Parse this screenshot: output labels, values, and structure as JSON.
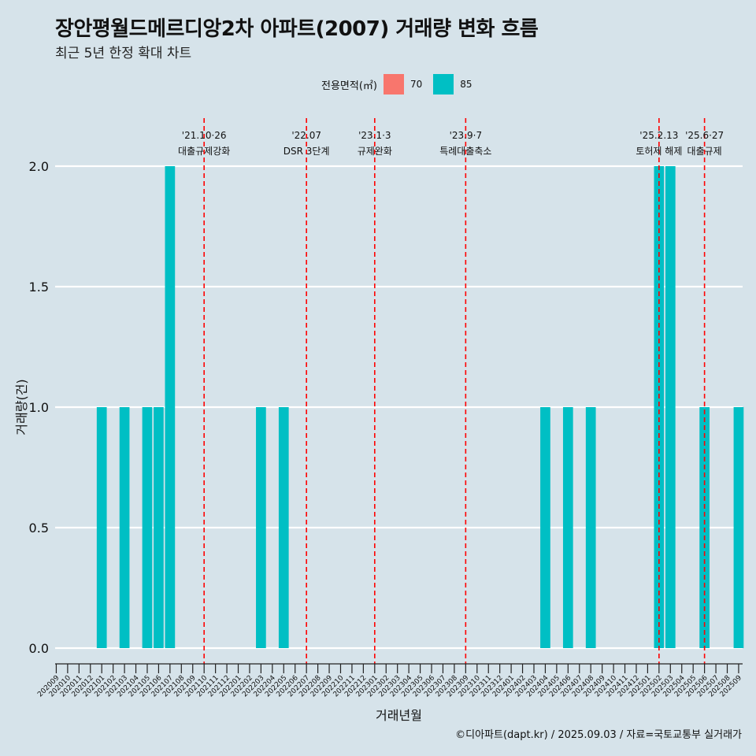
{
  "title": "장안평월드메르디앙2차 아파트(2007) 거래량 변화 흐름",
  "subtitle": "최근 5년 한정 확대 차트",
  "caption": "©디아파트(dapt.kr) / 2025.09.03 / 자료=국토교통부 실거래가",
  "legend": {
    "title": "전용면적(㎡)",
    "items": [
      {
        "label": "70",
        "color": "#f8766d"
      },
      {
        "label": "85",
        "color": "#00bfc4"
      }
    ]
  },
  "chart_data": {
    "type": "bar",
    "xlabel": "거래년월",
    "ylabel": "거래량(건)",
    "ylim": [
      0,
      2
    ],
    "yticks": [
      "0.0",
      "0.5",
      "1.0",
      "1.5",
      "2.0"
    ],
    "categories": [
      "202009",
      "202010",
      "202011",
      "202012",
      "202101",
      "202102",
      "202103",
      "202104",
      "202105",
      "202106",
      "202107",
      "202108",
      "202109",
      "202110",
      "202111",
      "202112",
      "202201",
      "202202",
      "202203",
      "202204",
      "202205",
      "202206",
      "202207",
      "202208",
      "202209",
      "202210",
      "202211",
      "202212",
      "202301",
      "202302",
      "202303",
      "202304",
      "202305",
      "202306",
      "202307",
      "202308",
      "202309",
      "202310",
      "202311",
      "202312",
      "202401",
      "202402",
      "202403",
      "202404",
      "202405",
      "202406",
      "202407",
      "202408",
      "202409",
      "202410",
      "202411",
      "202412",
      "202501",
      "202502",
      "202503",
      "202504",
      "202505",
      "202506",
      "202507",
      "202508",
      "202509"
    ],
    "series": [
      {
        "name": "70",
        "color": "#f8766d",
        "values": [
          0,
          0,
          0,
          0,
          0,
          0,
          0,
          0,
          0,
          0,
          0,
          0,
          0,
          0,
          0,
          0,
          0,
          0,
          0,
          0,
          0,
          0,
          0,
          0,
          0,
          0,
          0,
          0,
          0,
          0,
          0,
          0,
          0,
          0,
          0,
          0,
          0,
          0,
          0,
          0,
          0,
          0,
          0,
          0,
          0,
          0,
          0,
          0,
          0,
          0,
          0,
          0,
          0,
          0,
          0,
          0,
          0,
          0,
          0,
          0,
          0
        ]
      },
      {
        "name": "85",
        "color": "#00bfc4",
        "values": [
          0,
          0,
          0,
          0,
          1,
          0,
          1,
          0,
          1,
          1,
          2,
          0,
          0,
          0,
          0,
          0,
          0,
          0,
          1,
          0,
          1,
          0,
          0,
          0,
          0,
          0,
          0,
          0,
          0,
          0,
          0,
          0,
          0,
          0,
          0,
          0,
          0,
          0,
          0,
          0,
          0,
          0,
          0,
          1,
          0,
          1,
          0,
          1,
          0,
          0,
          0,
          0,
          0,
          2,
          2,
          0,
          0,
          1,
          0,
          0,
          1
        ]
      }
    ],
    "events": [
      {
        "position": "202110",
        "date": "'21.10·26",
        "label": "대출규제강화"
      },
      {
        "position": "202207",
        "date": "'22.07",
        "label": "DSR 3단계"
      },
      {
        "position": "202301",
        "date": "'23.1·3",
        "label": "규제완화"
      },
      {
        "position": "202309",
        "date": "'23.9·7",
        "label": "특례대출축소"
      },
      {
        "position": "202502",
        "date": "'25.2.13",
        "label": "토허제 해제"
      },
      {
        "position": "202506",
        "date": "'25.6·27",
        "label": "대출규제"
      }
    ],
    "grid": true,
    "legend_position": "top"
  }
}
